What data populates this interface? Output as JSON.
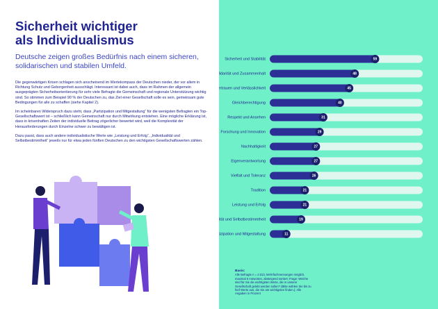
{
  "header": {
    "title_lines": [
      "Sicherheit wichtiger",
      "als Individualismus"
    ],
    "subtitle": "Deutsche zeigen großes Bedürfnis nach einem sicheren, solidarischen und stabilen Umfeld."
  },
  "paragraphs": [
    "Die gegenwärtigen Krisen schlagen sich anscheinend im Wertekompass der Deutschen nieder, der vor allem in Richtung Schutz und Geborgenheit ausschlägt. Interessant ist dabei auch, dass im Rahmen der allgemein ausgeprägten Sicherheitsorientierung für sehr viele Befragte die Gemeinschaft und regionale Unterstützung wichtig sind. So stimmen zum Beispiel 90 % der Deutschen zu, das Ziel einer Gesellschaft solle es sein, gemeinsam gute Bedingungen für alle zu schaffen (siehe Kapitel 2).",
    "Im scheinbaren Widerspruch dazu steht, dass „Partizipation und Mitgestaltung“ für die wenigsten Befragten ein Top-Gesellschaftswert ist – schließlich kann Gemeinschaft nur durch Mitwirkung entstehen. Eine mögliche Erklärung ist, dass in krisenhaften Zeiten der individuelle Beitrag zögerlicher bewertet wird, weil die Komplexität der Herausforderungen durch Einzelne schwer zu bewältigen ist.",
    "Dazu passt, dass auch andere individualistische Werte wie „Leistung und Erfolg“, „Individualität und Selbstbestimmtheit“ jeweils nur für etwa jeden fünften Deutschen zu den wichtigsten Gesellschaftswerten zählen."
  ],
  "chart_data": {
    "type": "bar",
    "orientation": "horizontal",
    "color": "#2b2f96",
    "label_color": "#1c1f6b",
    "track_color": "#dff7ef",
    "categories": [
      "Sicherheit und Stabilität",
      "Solidarität und Zusammenhalt",
      "Vertrauen und Verlässlichkeit",
      "Gleichberechtigung",
      "Respekt und Ansehen",
      "Forschung und Innovation",
      "Nachhaltigkeit",
      "Eigenverantwortung",
      "Vielfalt und Toleranz",
      "Tradition",
      "Leistung und Erfolg",
      "Individualität und Selbstbestimmtheit",
      "Partizipation und Mitgestaltung"
    ],
    "values": [
      59,
      48,
      45,
      40,
      31,
      29,
      27,
      27,
      26,
      21,
      21,
      19,
      11
    ]
  },
  "footnote": {
    "heading": "Basis:",
    "text": "Alle Befragte n = 2.013, Mehrfachnennungen möglich, maximal 5 Antworten, absteigend sortiert; Frage: Welche sind für Sie die wichtigsten Werte, die in unserer Gesellschaft gelebt werden sollen? (Bitte wählen Sie bis zu fünf Werte aus, die Sie am wichtigsten finden.); Alle Angaben in Prozent"
  }
}
